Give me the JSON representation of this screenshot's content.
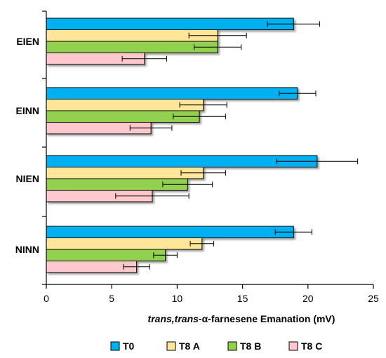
{
  "chart_data": {
    "type": "bar",
    "orientation": "horizontal",
    "categories": [
      "EIEN",
      "EINN",
      "NIEN",
      "NINN"
    ],
    "series": [
      {
        "name": "T0",
        "color": "#00b0f0",
        "values": [
          18.9,
          19.2,
          20.7,
          18.9
        ],
        "errors": [
          2.0,
          1.4,
          3.1,
          1.4
        ]
      },
      {
        "name": "T8 A",
        "color": "#ffe699",
        "values": [
          13.1,
          12.0,
          12.0,
          11.9
        ],
        "errors": [
          2.2,
          1.8,
          1.7,
          0.9
        ]
      },
      {
        "name": "T8 B",
        "color": "#92d050",
        "values": [
          13.1,
          11.7,
          10.8,
          9.1
        ],
        "errors": [
          1.8,
          2.0,
          1.9,
          0.9
        ]
      },
      {
        "name": "T8 C",
        "color": "#ffc7ce",
        "values": [
          7.5,
          8.0,
          8.1,
          6.9
        ],
        "errors": [
          1.7,
          1.6,
          2.8,
          1.0
        ]
      }
    ],
    "xlim": [
      0,
      25
    ],
    "xticks": [
      "0",
      "5",
      "10",
      "15",
      "20",
      "25"
    ],
    "xlabel_italic": "trans,trans",
    "xlabel_rest": "-α-farnesene Emanation (mV)",
    "legend_position": "bottom",
    "grid": false
  }
}
